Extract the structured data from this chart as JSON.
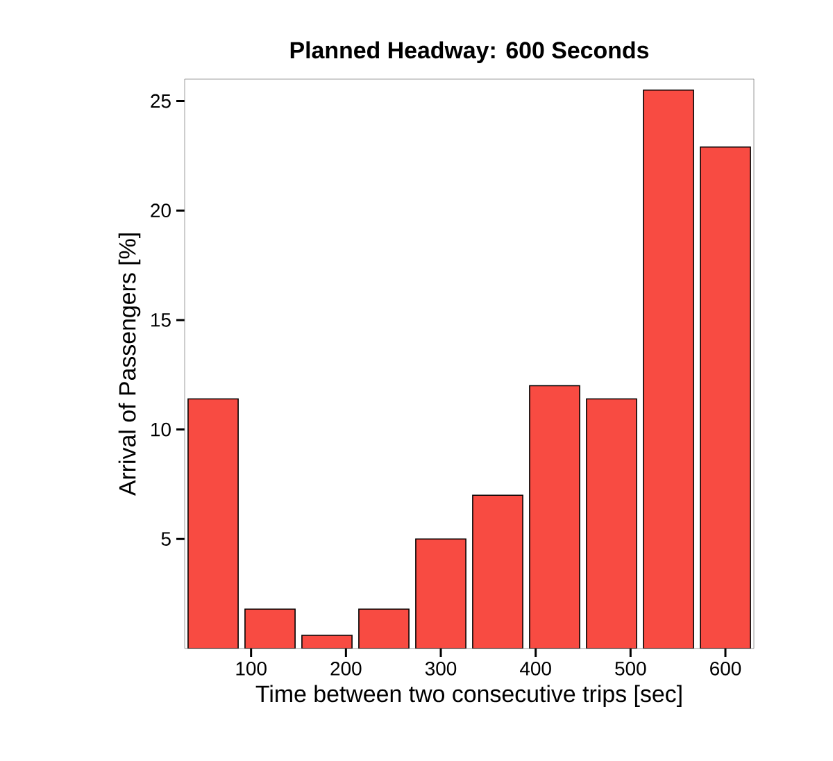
{
  "chart_data": {
    "type": "histogram",
    "title": "Planned Headway: 600 Seconds",
    "xlabel": "Time between two consecutive trips [sec]",
    "ylabel": "Arrival of Passengers [%]",
    "bins": [
      30,
      90,
      150,
      210,
      270,
      330,
      390,
      450,
      510,
      570,
      630
    ],
    "values": [
      11.4,
      1.8,
      0.6,
      1.8,
      5.0,
      7.0,
      12.0,
      11.4,
      25.5,
      22.9
    ],
    "color": "#f84b42",
    "xlim": [
      30,
      630
    ],
    "ylim": [
      0,
      26
    ],
    "xticks": [
      100,
      200,
      300,
      400,
      500,
      600
    ],
    "yticks": [
      5,
      10,
      15,
      20,
      25
    ]
  }
}
